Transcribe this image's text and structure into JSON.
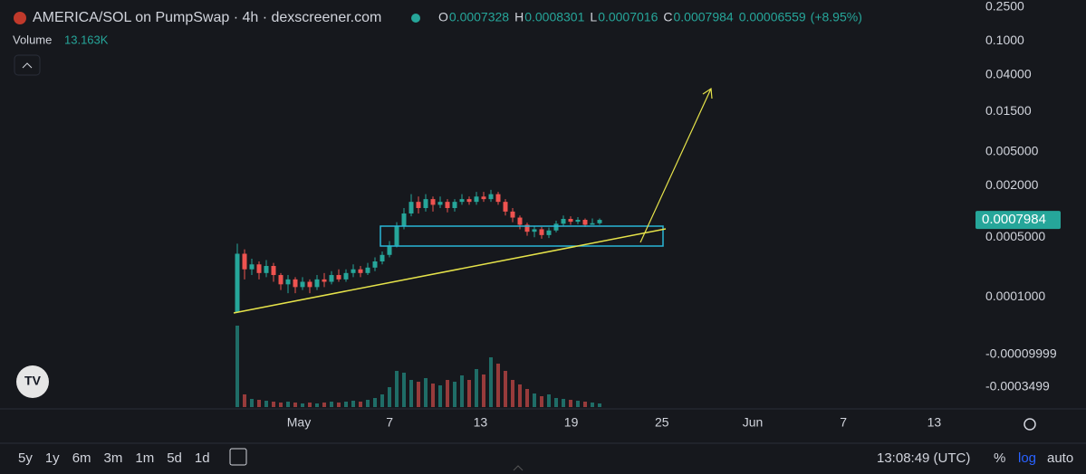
{
  "header": {
    "title": "AMERICA/SOL on PumpSwap · 4h · dexscreener.com",
    "ohlc": [
      {
        "key": "O",
        "value": 0.0007328
      },
      {
        "key": "H",
        "value": 0.0008301
      },
      {
        "key": "L",
        "value": 0.0007016
      },
      {
        "key": "C",
        "value": 0.0007984
      }
    ],
    "change": 6.559e-05,
    "change_pct": "(+8.95%)",
    "volume_label": "Volume",
    "volume_value": "13.163K"
  },
  "chart_data": {
    "type": "candlestick",
    "log_scale": true,
    "categories": [
      null,
      null,
      null,
      null,
      null,
      null,
      null,
      null,
      null,
      null,
      null,
      null,
      null,
      null,
      null,
      null,
      null,
      null,
      null,
      null,
      null,
      null,
      null,
      null,
      null,
      null,
      null,
      null,
      null,
      null,
      null,
      null,
      null,
      null,
      null,
      null,
      null,
      null,
      null,
      null,
      null,
      null,
      null,
      null,
      null,
      null,
      null,
      null,
      null,
      null,
      null
    ],
    "open": [
      6.6e-05,
      0.00032,
      0.00021,
      0.00024,
      0.00019,
      0.00023,
      0.00018,
      0.00014,
      0.00016,
      0.00013,
      0.00015,
      0.00013,
      0.00016,
      0.00015,
      0.00018,
      0.00016,
      0.00019,
      0.00021,
      0.00019,
      0.00022,
      0.00026,
      0.00031,
      0.0004,
      0.00068,
      0.00095,
      0.0013,
      0.0011,
      0.0014,
      0.0012,
      0.0013,
      0.0011,
      0.0013,
      0.0014,
      0.0013,
      0.0015,
      0.0014,
      0.0016,
      0.0013,
      0.001,
      0.00085,
      0.0007,
      0.00058,
      0.00062,
      0.00053,
      0.0006,
      0.00072,
      0.00082,
      0.00076,
      0.0008,
      0.0007,
      0.00073
    ],
    "high": [
      0.00042,
      0.00036,
      0.00028,
      0.00026,
      0.00027,
      0.00025,
      0.00019,
      0.00018,
      0.00017,
      0.00017,
      0.00016,
      0.00018,
      0.00019,
      0.0002,
      0.00021,
      0.00021,
      0.00024,
      0.00023,
      0.00025,
      0.00029,
      0.00034,
      0.00045,
      0.00075,
      0.0011,
      0.0016,
      0.0015,
      0.0016,
      0.0015,
      0.0015,
      0.0014,
      0.0014,
      0.0016,
      0.0015,
      0.0017,
      0.0017,
      0.0018,
      0.0017,
      0.0014,
      0.0011,
      0.0009,
      0.00074,
      0.00068,
      0.00066,
      0.00065,
      0.00078,
      0.0009,
      0.00088,
      0.00086,
      0.00083,
      0.00083,
      0.00083
    ],
    "low": [
      6.6e-05,
      0.00016,
      0.00018,
      0.00016,
      0.00017,
      0.00015,
      0.00012,
      0.00011,
      0.00011,
      0.00012,
      0.00011,
      0.00012,
      0.00013,
      0.00014,
      0.00015,
      0.00015,
      0.00017,
      0.00017,
      0.00018,
      0.0002,
      0.00024,
      0.00029,
      0.00038,
      0.00062,
      0.00088,
      0.00095,
      0.001,
      0.001,
      0.0011,
      0.00098,
      0.001,
      0.0012,
      0.0012,
      0.0012,
      0.0013,
      0.0013,
      0.0012,
      0.0009,
      0.00075,
      0.00062,
      0.00052,
      0.0005,
      0.00048,
      0.00049,
      0.00057,
      0.00068,
      0.0007,
      0.00071,
      0.00066,
      0.0007,
      0.0007
    ],
    "close": [
      0.00032,
      0.00021,
      0.00024,
      0.00019,
      0.00023,
      0.00018,
      0.00014,
      0.00016,
      0.00013,
      0.00015,
      0.00013,
      0.00016,
      0.00015,
      0.00018,
      0.00016,
      0.00019,
      0.00021,
      0.00019,
      0.00022,
      0.00026,
      0.00031,
      0.0004,
      0.00068,
      0.00095,
      0.0013,
      0.0011,
      0.0014,
      0.0012,
      0.0013,
      0.0011,
      0.0013,
      0.0014,
      0.0013,
      0.0015,
      0.0014,
      0.0016,
      0.0013,
      0.001,
      0.00085,
      0.0007,
      0.00058,
      0.00062,
      0.00053,
      0.0006,
      0.00072,
      0.00082,
      0.00076,
      0.0008,
      0.0007,
      0.00073,
      0.0007984
    ],
    "volume": [
      90,
      14,
      9,
      8,
      7,
      6,
      5,
      6,
      5,
      4,
      5,
      4,
      5,
      6,
      5,
      6,
      7,
      6,
      8,
      10,
      14,
      22,
      40,
      38,
      30,
      28,
      32,
      26,
      24,
      30,
      28,
      35,
      30,
      42,
      36,
      55,
      48,
      40,
      30,
      25,
      20,
      15,
      12,
      14,
      10,
      9,
      8,
      7,
      6,
      5,
      4
    ],
    "up_color": "#26a69a",
    "down_color": "#ef5350",
    "ylim": [
      4.8e-06,
      0.3
    ],
    "yticks": [
      {
        "value": 0.25,
        "label": "0.2500"
      },
      {
        "value": 0.1,
        "label": "0.1000"
      },
      {
        "value": 0.04,
        "label": "0.04000"
      },
      {
        "value": 0.015,
        "label": "0.01500"
      },
      {
        "value": 0.005,
        "label": "0.005000"
      },
      {
        "value": 0.002,
        "label": "0.002000"
      },
      {
        "value": 0.0005,
        "label": "0.0005000"
      },
      {
        "value": 0.0001,
        "label": "0.0001000"
      }
    ],
    "volume_axis_labels": [
      "-0.00009999",
      "-0.0003499"
    ],
    "last_price": 0.0007984,
    "x_axis_labels": [
      "May",
      "7",
      "13",
      "19",
      "25",
      "Jun",
      "7",
      "13"
    ]
  },
  "toolbar": {
    "ranges": [
      "5y",
      "1y",
      "6m",
      "3m",
      "1m",
      "5d",
      "1d"
    ],
    "time": "13:08:49 (UTC)",
    "options": [
      "%",
      "log",
      "auto"
    ]
  }
}
